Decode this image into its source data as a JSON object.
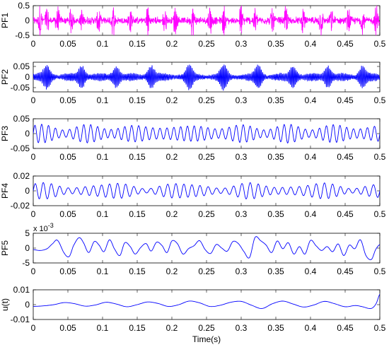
{
  "chart_data": [
    {
      "type": "line",
      "ylabel": "PF1",
      "color": "#ff00ff",
      "xlim": [
        0,
        0.5
      ],
      "ylim": [
        -0.5,
        0.5
      ],
      "xticks": [
        "0",
        "0.05",
        "0.1",
        "0.15",
        "0.2",
        "0.25",
        "0.3",
        "0.35",
        "0.4",
        "0.45",
        "0.5"
      ],
      "yticks": [
        {
          "value": 0.5,
          "label": "0.5"
        },
        {
          "value": 0,
          "label": "0"
        },
        {
          "value": -0.5,
          "label": "-0.5"
        }
      ],
      "series": [
        {
          "style": "broadband",
          "x_range": [
            0,
            0.5
          ],
          "n_points": 1500,
          "base_amplitude": 0.12,
          "burst_times": [
            0.01,
            0.02,
            0.035,
            0.055,
            0.07,
            0.095,
            0.115,
            0.14,
            0.165,
            0.19,
            0.205,
            0.23,
            0.255,
            0.275,
            0.3,
            0.32,
            0.345,
            0.365,
            0.39,
            0.415,
            0.43,
            0.455,
            0.475,
            0.495
          ],
          "burst_peak": 0.38
        }
      ]
    },
    {
      "type": "line",
      "ylabel": "PF2",
      "color": "#0000ff",
      "xlim": [
        0,
        0.5
      ],
      "ylim": [
        -0.07,
        0.07
      ],
      "xticks": [
        "0",
        "0.05",
        "0.1",
        "0.15",
        "0.2",
        "0.25",
        "0.3",
        "0.35",
        "0.4",
        "0.45",
        "0.5"
      ],
      "yticks": [
        {
          "value": 0.05,
          "label": "0.05"
        },
        {
          "value": 0,
          "label": "0"
        },
        {
          "value": -0.05,
          "label": "-0.05"
        }
      ],
      "series": [
        {
          "style": "modulated",
          "x_range": [
            0,
            0.5
          ],
          "n_points": 1400,
          "carrier_cycles": 260,
          "base_amplitude": 0.018,
          "burst_times": [
            0.02,
            0.07,
            0.12,
            0.17,
            0.225,
            0.275,
            0.325,
            0.375,
            0.425,
            0.475
          ],
          "burst_peak": 0.045
        }
      ]
    },
    {
      "type": "line",
      "ylabel": "PF3",
      "color": "#0000ff",
      "xlim": [
        0,
        0.5
      ],
      "ylim": [
        -0.05,
        0.05
      ],
      "xticks": [
        "0",
        "0.05",
        "0.1",
        "0.15",
        "0.2",
        "0.25",
        "0.3",
        "0.35",
        "0.4",
        "0.45",
        "0.5"
      ],
      "yticks": [
        {
          "value": 0.05,
          "label": "0.05"
        },
        {
          "value": 0,
          "label": "0"
        },
        {
          "value": -0.05,
          "label": "-0.05"
        }
      ],
      "series": [
        {
          "style": "tone",
          "x_range": [
            0,
            0.5
          ],
          "n_points": 1000,
          "cycles": 50,
          "amplitude": 0.022,
          "amp_mod_depth": 0.3,
          "amp_mod_cycles": 7
        }
      ]
    },
    {
      "type": "line",
      "ylabel": "PF4",
      "color": "#0000ff",
      "xlim": [
        0,
        0.5
      ],
      "ylim": [
        -0.02,
        0.02
      ],
      "xticks": [
        "0",
        "0.05",
        "0.1",
        "0.15",
        "0.2",
        "0.25",
        "0.3",
        "0.35",
        "0.4",
        "0.45",
        "0.5"
      ],
      "yticks": [
        {
          "value": 0.02,
          "label": "0.02"
        },
        {
          "value": 0,
          "label": "0"
        },
        {
          "value": -0.02,
          "label": "-0.02"
        }
      ],
      "series": [
        {
          "style": "tone",
          "x_range": [
            0,
            0.5
          ],
          "n_points": 1000,
          "cycles": 42,
          "amplitude": 0.007,
          "amp_mod_depth": 0.45,
          "amp_mod_cycles": 5
        }
      ]
    },
    {
      "type": "line",
      "ylabel": "PF5",
      "color": "#0000ff",
      "xlim": [
        0,
        0.5
      ],
      "ylim": [
        -5,
        5
      ],
      "exponent_label": "x 10",
      "exponent_power": "-3",
      "xticks": [
        "0",
        "0.05",
        "0.1",
        "0.15",
        "0.2",
        "0.25",
        "0.3",
        "0.35",
        "0.4",
        "0.45",
        "0.5"
      ],
      "yticks": [
        {
          "value": 5,
          "label": "5"
        },
        {
          "value": 0,
          "label": "0"
        },
        {
          "value": -5,
          "label": "-5"
        }
      ],
      "series": [
        {
          "x": [
            0,
            0.01,
            0.02,
            0.028,
            0.035,
            0.045,
            0.052,
            0.058,
            0.066,
            0.072,
            0.08,
            0.088,
            0.095,
            0.102,
            0.11,
            0.117,
            0.125,
            0.132,
            0.14,
            0.147,
            0.155,
            0.163,
            0.17,
            0.178,
            0.186,
            0.193,
            0.2,
            0.208,
            0.216,
            0.224,
            0.232,
            0.24,
            0.248,
            0.256,
            0.264,
            0.272,
            0.28,
            0.288,
            0.296,
            0.304,
            0.312,
            0.32,
            0.328,
            0.336,
            0.344,
            0.352,
            0.36,
            0.368,
            0.376,
            0.384,
            0.392,
            0.4,
            0.408,
            0.416,
            0.424,
            0.432,
            0.44,
            0.448,
            0.456,
            0.464,
            0.472,
            0.48,
            0.488,
            0.494,
            0.5
          ],
          "y": [
            -0.5,
            -0.8,
            -0.2,
            1.5,
            2.6,
            -1.8,
            -2.8,
            0.8,
            3.5,
            2.0,
            -1.5,
            2.2,
            1.0,
            -1.2,
            2.8,
            -0.2,
            -2.5,
            1.8,
            0.5,
            -2.0,
            0.2,
            1.5,
            -1.0,
            2.0,
            0.8,
            -1.5,
            2.4,
            1.5,
            -2.0,
            -0.2,
            0.8,
            2.5,
            -0.5,
            -1.8,
            1.2,
            0.0,
            -1.0,
            2.2,
            1.5,
            -1.2,
            -3.2,
            3.6,
            2.5,
            1.0,
            -1.5,
            2.4,
            -0.2,
            1.8,
            -2.0,
            0.5,
            -2.0,
            2.6,
            0.8,
            -0.8,
            0.5,
            -1.2,
            1.4,
            -2.5,
            1.0,
            -0.2,
            2.8,
            -2.5,
            -3.8,
            -0.5,
            1.2
          ]
        }
      ]
    },
    {
      "type": "line",
      "ylabel": "u(t)",
      "xlabel": "Time(s)",
      "color": "#0000ff",
      "xlim": [
        0,
        0.5
      ],
      "ylim": [
        -0.01,
        0.01
      ],
      "xticks": [
        "0",
        "0.05",
        "0.1",
        "0.15",
        "0.2",
        "0.25",
        "0.3",
        "0.35",
        "0.4",
        "0.45",
        "0.5"
      ],
      "yticks": [
        {
          "value": 0.01,
          "label": "0.01"
        },
        {
          "value": 0,
          "label": "0"
        },
        {
          "value": -0.01,
          "label": "-0.01"
        }
      ],
      "series": [
        {
          "x": [
            0,
            0.015,
            0.03,
            0.045,
            0.06,
            0.075,
            0.09,
            0.105,
            0.12,
            0.135,
            0.15,
            0.165,
            0.18,
            0.195,
            0.21,
            0.225,
            0.24,
            0.255,
            0.27,
            0.285,
            0.3,
            0.315,
            0.33,
            0.345,
            0.36,
            0.375,
            0.39,
            0.405,
            0.42,
            0.435,
            0.45,
            0.465,
            0.475,
            0.485,
            0.49,
            0.495,
            0.5
          ],
          "y": [
            -0.0012,
            -0.0008,
            0.0,
            0.0014,
            0.0006,
            -0.001,
            -0.0002,
            0.0016,
            0.0004,
            -0.0014,
            0.0,
            0.0018,
            0.0008,
            -0.0012,
            0.0,
            0.0024,
            0.0012,
            -0.0012,
            -0.0004,
            0.0016,
            0.0022,
            -0.0004,
            -0.0026,
            0.0006,
            0.0024,
            0.0004,
            -0.0016,
            -0.0002,
            0.0022,
            0.0006,
            -0.0014,
            -0.0006,
            -0.0014,
            -0.0026,
            -0.002,
            0.001,
            0.007
          ]
        }
      ]
    }
  ]
}
